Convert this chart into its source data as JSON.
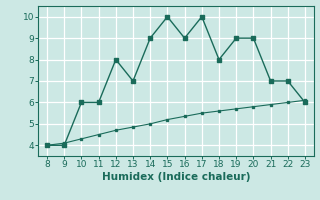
{
  "xlabel": "Humidex (Indice chaleur)",
  "xlim": [
    7.5,
    23.5
  ],
  "ylim": [
    3.5,
    10.5
  ],
  "xticks": [
    8,
    9,
    10,
    11,
    12,
    13,
    14,
    15,
    16,
    17,
    18,
    19,
    20,
    21,
    22,
    23
  ],
  "yticks": [
    4,
    5,
    6,
    7,
    8,
    9,
    10
  ],
  "bg_color": "#cce8e4",
  "line_color": "#1a6b5a",
  "grid_color": "#aad4ce",
  "curve1_x": [
    8,
    9,
    10,
    11,
    12,
    13,
    14,
    15,
    16,
    17,
    18,
    19,
    20,
    21,
    22,
    23
  ],
  "curve1_y": [
    4,
    4,
    6,
    6,
    8,
    7,
    9,
    10,
    9,
    10,
    8,
    9,
    9,
    7,
    7,
    6
  ],
  "curve2_x": [
    8,
    9,
    10,
    11,
    12,
    13,
    14,
    15,
    16,
    17,
    18,
    19,
    20,
    21,
    22,
    23
  ],
  "curve2_y": [
    4.0,
    4.1,
    4.3,
    4.5,
    4.7,
    4.85,
    5.0,
    5.2,
    5.35,
    5.5,
    5.6,
    5.7,
    5.8,
    5.9,
    6.0,
    6.1
  ],
  "xlabel_fontsize": 7.5,
  "tick_fontsize": 6.5,
  "marker_size1": 2.5,
  "marker_size2": 2.0,
  "linewidth1": 1.0,
  "linewidth2": 0.8
}
